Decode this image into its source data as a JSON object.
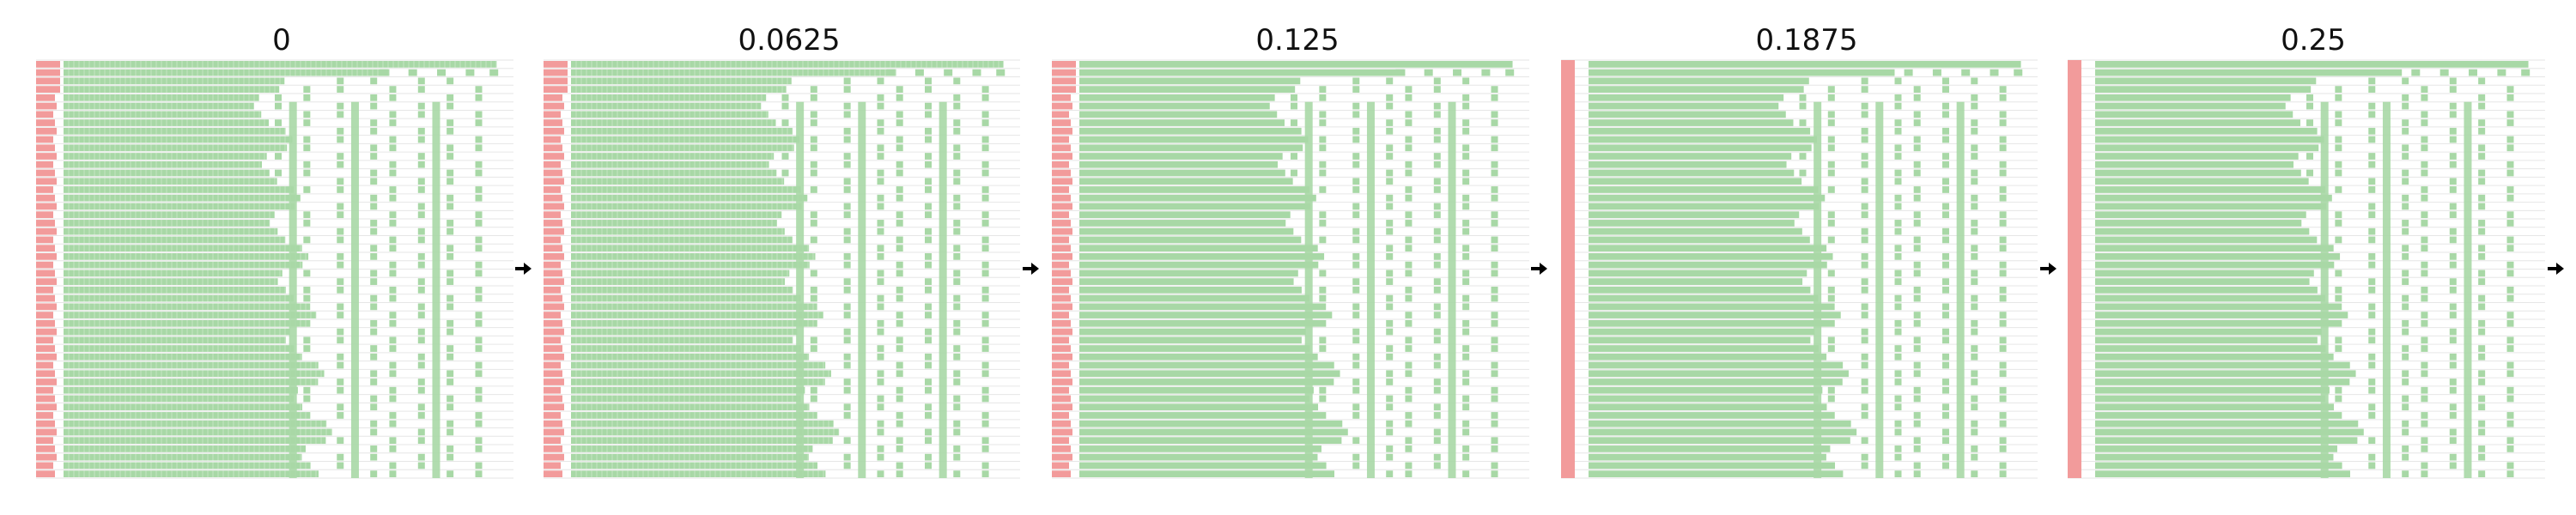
{
  "colors": {
    "prefill": "#f29b9b",
    "decode": "#a8d8a6",
    "arrow": "#000000",
    "row_line": "#e6e6e6"
  },
  "chart_data": [
    {
      "type": "timeline",
      "title": "0",
      "prefill_style": "per-request",
      "decode_style": "dense-strips"
    },
    {
      "type": "timeline",
      "title": "0.0625",
      "prefill_style": "per-request",
      "decode_style": "dense-strips"
    },
    {
      "type": "timeline",
      "title": "0.125",
      "prefill_style": "per-request",
      "decode_style": "solid"
    },
    {
      "type": "timeline",
      "title": "0.1875",
      "prefill_style": "batched",
      "decode_style": "solid"
    },
    {
      "type": "timeline",
      "title": "0.25",
      "prefill_style": "batched",
      "decode_style": "solid"
    }
  ],
  "arrows": [
    "right-arrow",
    "right-arrow",
    "right-arrow",
    "right-arrow",
    "right-arrow"
  ]
}
